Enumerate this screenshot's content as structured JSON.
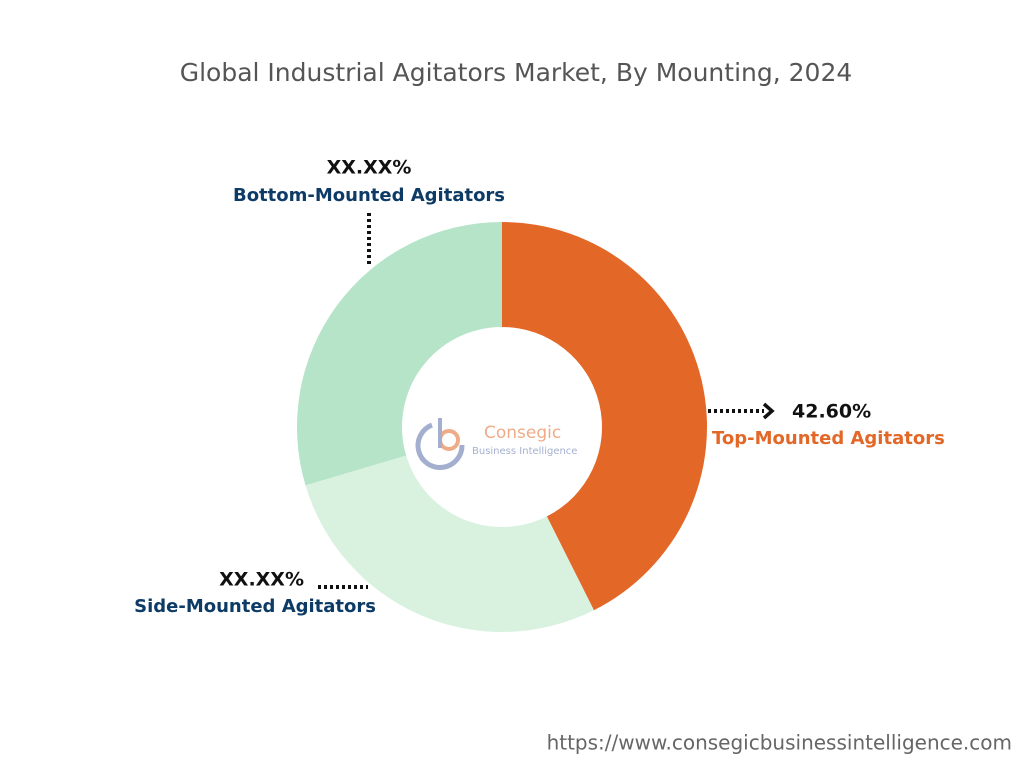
{
  "chart_data": {
    "type": "donut",
    "title": "Global Industrial Agitators Market, By Mounting, 2024",
    "categories": [
      "Top-Mounted Agitators",
      "Side-Mounted Agitators",
      "Bottom-Mounted Agitators"
    ],
    "values": [
      42.6,
      27.8,
      29.6
    ],
    "value_labels": [
      "42.60%",
      "XX.XX%",
      "XX.XX%"
    ],
    "colors": [
      "#e36727",
      "#d9f2df",
      "#b5e4c8"
    ],
    "label_colors": [
      "#e36727",
      "#0d3b66",
      "#0d3b66"
    ]
  },
  "watermark": {
    "name": "Consegic",
    "tagline": "Business Intelligence"
  },
  "footer": {
    "url": "https://www.consegicbusinessintelligence.com"
  }
}
